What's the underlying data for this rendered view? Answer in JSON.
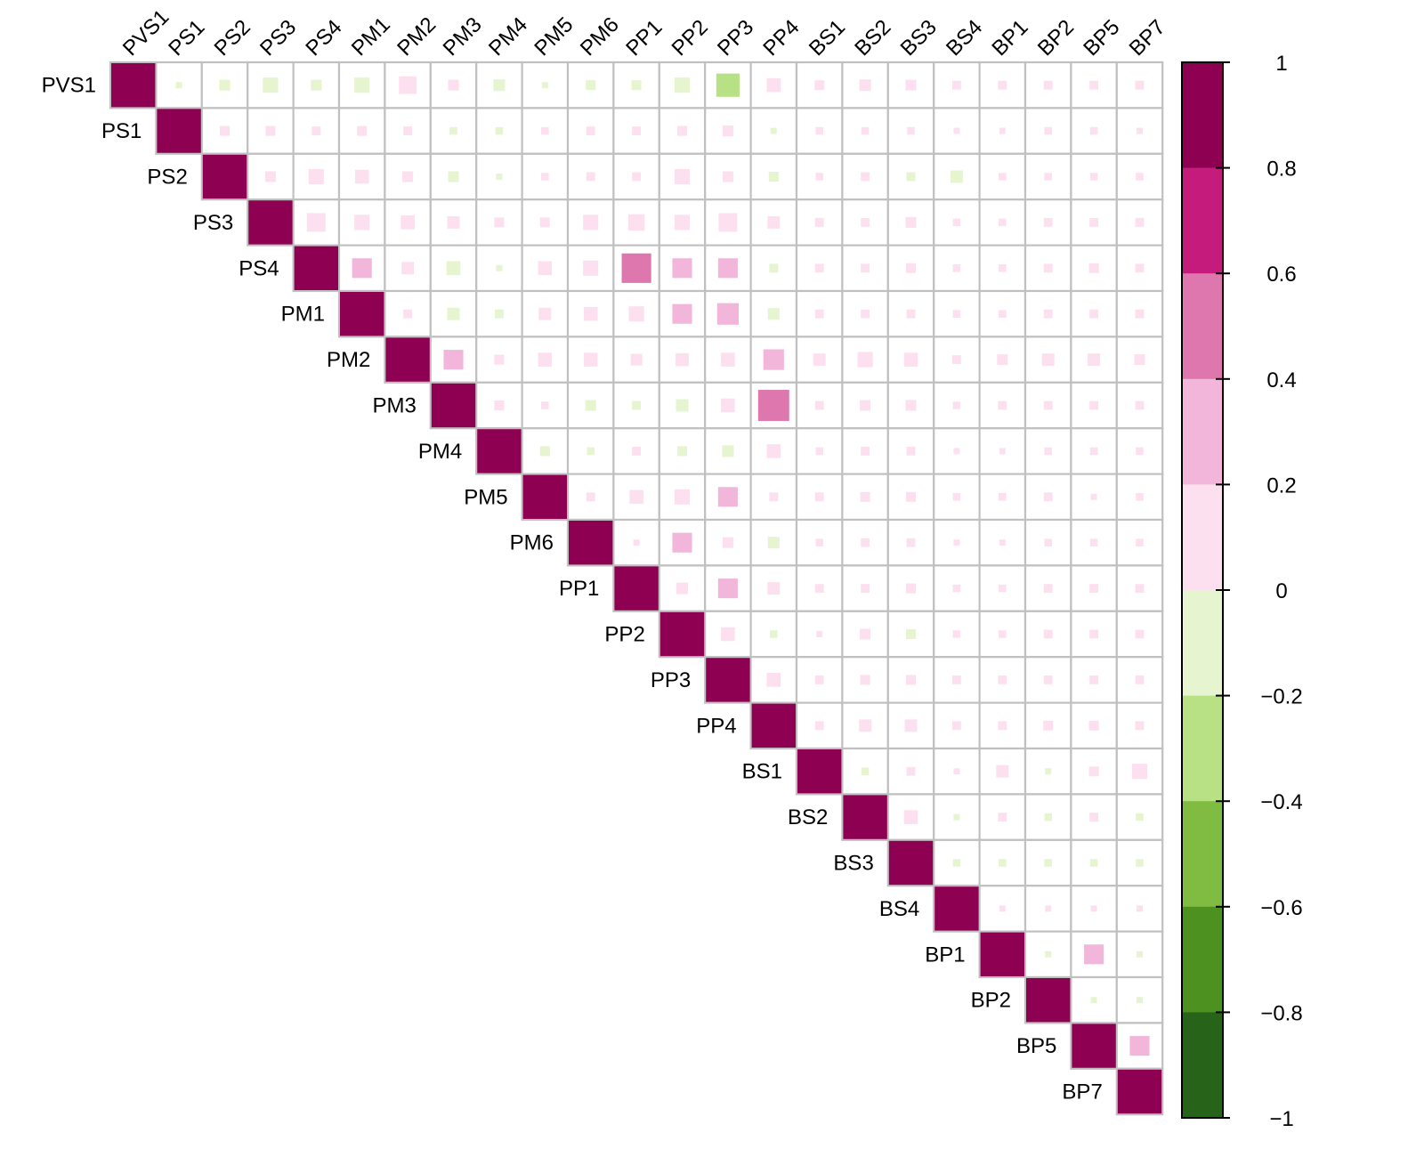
{
  "chart_data": {
    "type": "heatmap",
    "variant": "upper-triangular-correlation",
    "title": "",
    "xlabel": "",
    "ylabel": "",
    "labels": [
      "PVS1",
      "PS1",
      "PS2",
      "PS3",
      "PS4",
      "PM1",
      "PM2",
      "PM3",
      "PM4",
      "PM5",
      "PM6",
      "PP1",
      "PP2",
      "PP3",
      "PP4",
      "BS1",
      "BS2",
      "BS3",
      "BS4",
      "BP1",
      "BP2",
      "BP5",
      "BP7"
    ],
    "matrix": [
      [
        1,
        -0.02,
        -0.06,
        -0.12,
        -0.06,
        -0.12,
        0.16,
        0.06,
        -0.07,
        -0.02,
        -0.05,
        -0.05,
        -0.12,
        -0.28,
        0.1,
        0.05,
        0.07,
        0.06,
        0.04,
        0.04,
        0.04,
        0.04,
        0.04
      ],
      [
        null,
        1,
        0.05,
        0.05,
        0.04,
        0.05,
        0.04,
        -0.03,
        -0.03,
        0.03,
        0.04,
        0.04,
        0.05,
        0.06,
        -0.02,
        0.03,
        0.03,
        0.03,
        0.02,
        0.02,
        0.03,
        0.03,
        0.02
      ],
      [
        null,
        null,
        1,
        0.06,
        0.12,
        0.1,
        0.06,
        -0.06,
        -0.02,
        0.03,
        0.04,
        0.04,
        0.12,
        0.06,
        -0.05,
        0.03,
        0.04,
        -0.04,
        -0.08,
        0.03,
        0.03,
        0.03,
        0.03
      ],
      [
        null,
        null,
        null,
        1,
        0.18,
        0.12,
        0.1,
        0.08,
        0.05,
        0.05,
        0.12,
        0.14,
        0.12,
        0.18,
        0.08,
        0.04,
        0.04,
        0.06,
        0.03,
        0.03,
        0.04,
        0.04,
        0.04
      ],
      [
        null,
        null,
        null,
        null,
        1,
        0.2,
        0.08,
        -0.1,
        -0.02,
        0.1,
        0.12,
        0.45,
        0.2,
        0.2,
        -0.04,
        0.04,
        0.04,
        0.05,
        0.03,
        0.03,
        0.04,
        0.05,
        0.04
      ],
      [
        null,
        null,
        null,
        null,
        null,
        1,
        0.04,
        -0.08,
        -0.04,
        0.08,
        0.1,
        0.12,
        0.2,
        0.24,
        -0.07,
        0.04,
        0.04,
        0.04,
        0.03,
        0.03,
        0.04,
        0.04,
        0.04
      ],
      [
        null,
        null,
        null,
        null,
        null,
        null,
        1,
        0.2,
        0.05,
        0.1,
        0.1,
        0.07,
        0.09,
        0.1,
        0.22,
        0.08,
        0.12,
        0.1,
        0.04,
        0.06,
        0.08,
        0.08,
        0.06
      ],
      [
        null,
        null,
        null,
        null,
        null,
        null,
        null,
        1,
        0.05,
        0.03,
        -0.06,
        -0.04,
        -0.08,
        0.1,
        0.5,
        0.04,
        0.06,
        0.06,
        0.03,
        0.04,
        0.04,
        0.04,
        0.04
      ],
      [
        null,
        null,
        null,
        null,
        null,
        null,
        null,
        null,
        1,
        -0.05,
        -0.03,
        0.04,
        -0.05,
        -0.07,
        0.1,
        0.03,
        0.04,
        0.04,
        0.02,
        0.02,
        0.03,
        0.03,
        0.03
      ],
      [
        null,
        null,
        null,
        null,
        null,
        null,
        null,
        null,
        null,
        1,
        0.04,
        0.1,
        0.12,
        0.2,
        0.04,
        0.04,
        0.05,
        0.05,
        0.03,
        0.03,
        0.04,
        0.02,
        0.03
      ],
      [
        null,
        null,
        null,
        null,
        null,
        null,
        null,
        null,
        null,
        null,
        1,
        0.02,
        0.2,
        0.06,
        -0.07,
        0.03,
        0.04,
        0.04,
        0.02,
        0.02,
        0.03,
        0.03,
        0.03
      ],
      [
        null,
        null,
        null,
        null,
        null,
        null,
        null,
        null,
        null,
        null,
        null,
        1,
        0.07,
        0.2,
        0.08,
        0.04,
        0.04,
        0.05,
        0.03,
        0.03,
        0.04,
        0.04,
        0.04
      ],
      [
        null,
        null,
        null,
        null,
        null,
        null,
        null,
        null,
        null,
        null,
        null,
        null,
        1,
        0.1,
        -0.03,
        0.02,
        0.06,
        -0.05,
        0.03,
        0.03,
        0.04,
        0.04,
        0.04
      ],
      [
        null,
        null,
        null,
        null,
        null,
        null,
        null,
        null,
        null,
        null,
        null,
        null,
        null,
        1,
        0.1,
        0.04,
        0.05,
        0.05,
        0.04,
        0.04,
        0.04,
        0.04,
        0.04
      ],
      [
        null,
        null,
        null,
        null,
        null,
        null,
        null,
        null,
        null,
        null,
        null,
        null,
        null,
        null,
        1,
        0.04,
        0.08,
        0.08,
        0.04,
        0.04,
        0.05,
        0.05,
        0.04
      ],
      [
        null,
        null,
        null,
        null,
        null,
        null,
        null,
        null,
        null,
        null,
        null,
        null,
        null,
        null,
        null,
        1,
        -0.03,
        0.04,
        0.02,
        0.08,
        -0.02,
        0.05,
        0.12
      ],
      [
        null,
        null,
        null,
        null,
        null,
        null,
        null,
        null,
        null,
        null,
        null,
        null,
        null,
        null,
        null,
        null,
        1,
        0.1,
        -0.02,
        0.04,
        -0.03,
        0.04,
        -0.03
      ],
      [
        null,
        null,
        null,
        null,
        null,
        null,
        null,
        null,
        null,
        null,
        null,
        null,
        null,
        null,
        null,
        null,
        null,
        1,
        -0.03,
        -0.03,
        -0.03,
        -0.03,
        -0.03
      ],
      [
        null,
        null,
        null,
        null,
        null,
        null,
        null,
        null,
        null,
        null,
        null,
        null,
        null,
        null,
        null,
        null,
        null,
        null,
        1,
        0.02,
        0.02,
        0.02,
        0.02
      ],
      [
        null,
        null,
        null,
        null,
        null,
        null,
        null,
        null,
        null,
        null,
        null,
        null,
        null,
        null,
        null,
        null,
        null,
        null,
        null,
        1,
        -0.02,
        0.2,
        -0.02
      ],
      [
        null,
        null,
        null,
        null,
        null,
        null,
        null,
        null,
        null,
        null,
        null,
        null,
        null,
        null,
        null,
        null,
        null,
        null,
        null,
        null,
        1,
        -0.02,
        -0.02
      ],
      [
        null,
        null,
        null,
        null,
        null,
        null,
        null,
        null,
        null,
        null,
        null,
        null,
        null,
        null,
        null,
        null,
        null,
        null,
        null,
        null,
        null,
        1,
        0.2
      ],
      [
        null,
        null,
        null,
        null,
        null,
        null,
        null,
        null,
        null,
        null,
        null,
        null,
        null,
        null,
        null,
        null,
        null,
        null,
        null,
        null,
        null,
        null,
        1
      ]
    ],
    "colorbar": {
      "range": [
        -1,
        1
      ],
      "ticks": [
        "1",
        "0.8",
        "0.6",
        "0.4",
        "0.2",
        "0",
        "−0.2",
        "−0.4",
        "−0.6",
        "−0.8",
        "−1"
      ],
      "tick_values": [
        1,
        0.8,
        0.6,
        0.4,
        0.2,
        0,
        -0.2,
        -0.4,
        -0.6,
        -0.8,
        -1
      ],
      "bins": [
        {
          "from": 0.8,
          "to": 1.0,
          "color": "#8e0152"
        },
        {
          "from": 0.6,
          "to": 0.8,
          "color": "#c51b7d"
        },
        {
          "from": 0.4,
          "to": 0.6,
          "color": "#de77ae"
        },
        {
          "from": 0.2,
          "to": 0.4,
          "color": "#f1b6da"
        },
        {
          "from": 0.0,
          "to": 0.2,
          "color": "#fde0ef"
        },
        {
          "from": -0.2,
          "to": 0.0,
          "color": "#e6f5d0"
        },
        {
          "from": -0.4,
          "to": -0.2,
          "color": "#b8e186"
        },
        {
          "from": -0.6,
          "to": -0.4,
          "color": "#7fbc41"
        },
        {
          "from": -0.8,
          "to": -0.6,
          "color": "#4d9221"
        },
        {
          "from": -1.0,
          "to": -0.8,
          "color": "#276419"
        }
      ]
    },
    "grid": true,
    "grid_color": "#c0c0c0"
  }
}
